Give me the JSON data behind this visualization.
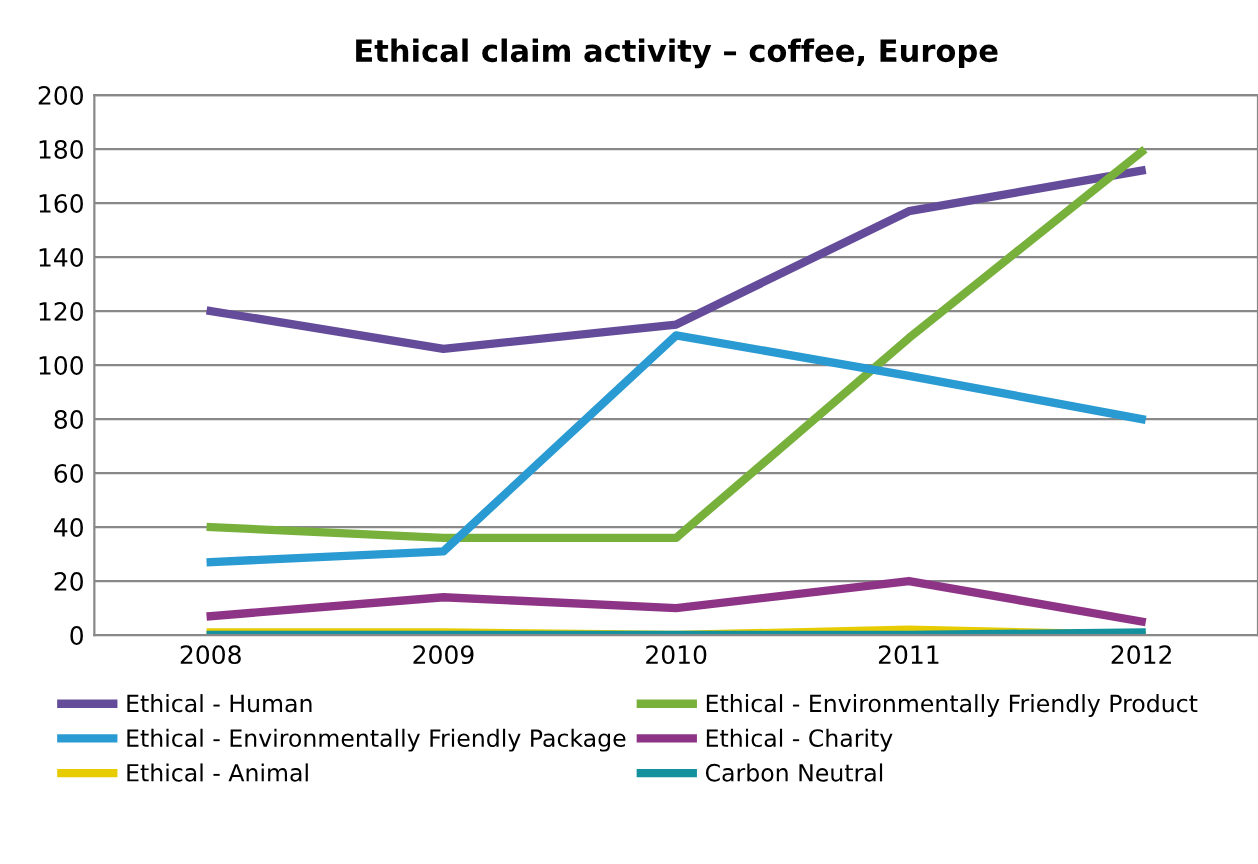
{
  "chart_data": {
    "type": "line",
    "title": "Ethical claim activity – coffee, Europe",
    "categories": [
      "2008",
      "2009",
      "2010",
      "2011",
      "2012"
    ],
    "series": [
      {
        "name": "Ethical - Human",
        "color": "#644c9a",
        "values": [
          120,
          106,
          115,
          157,
          172
        ]
      },
      {
        "name": "Ethical - Environmentally Friendly Product",
        "color": "#77b13c",
        "values": [
          40,
          36,
          36,
          110,
          179
        ]
      },
      {
        "name": "Ethical - Environmentally Friendly Package",
        "color": "#2a9ad2",
        "values": [
          27,
          31,
          111,
          96,
          80
        ]
      },
      {
        "name": "Ethical - Charity",
        "color": "#8e3486",
        "values": [
          7,
          14,
          10,
          20,
          5
        ]
      },
      {
        "name": "Ethical - Animal",
        "color": "#e6cc00",
        "values": [
          1,
          1,
          0,
          2,
          0
        ]
      },
      {
        "name": "Carbon Neutral",
        "color": "#13929e",
        "values": [
          0,
          0,
          0,
          0,
          1
        ]
      }
    ],
    "ylim": [
      0,
      200
    ],
    "yticks": [
      0,
      20,
      40,
      60,
      80,
      100,
      120,
      140,
      160,
      180,
      200
    ],
    "grid": "y",
    "legend": "bottom",
    "marker": "none",
    "line_style": "solid"
  }
}
